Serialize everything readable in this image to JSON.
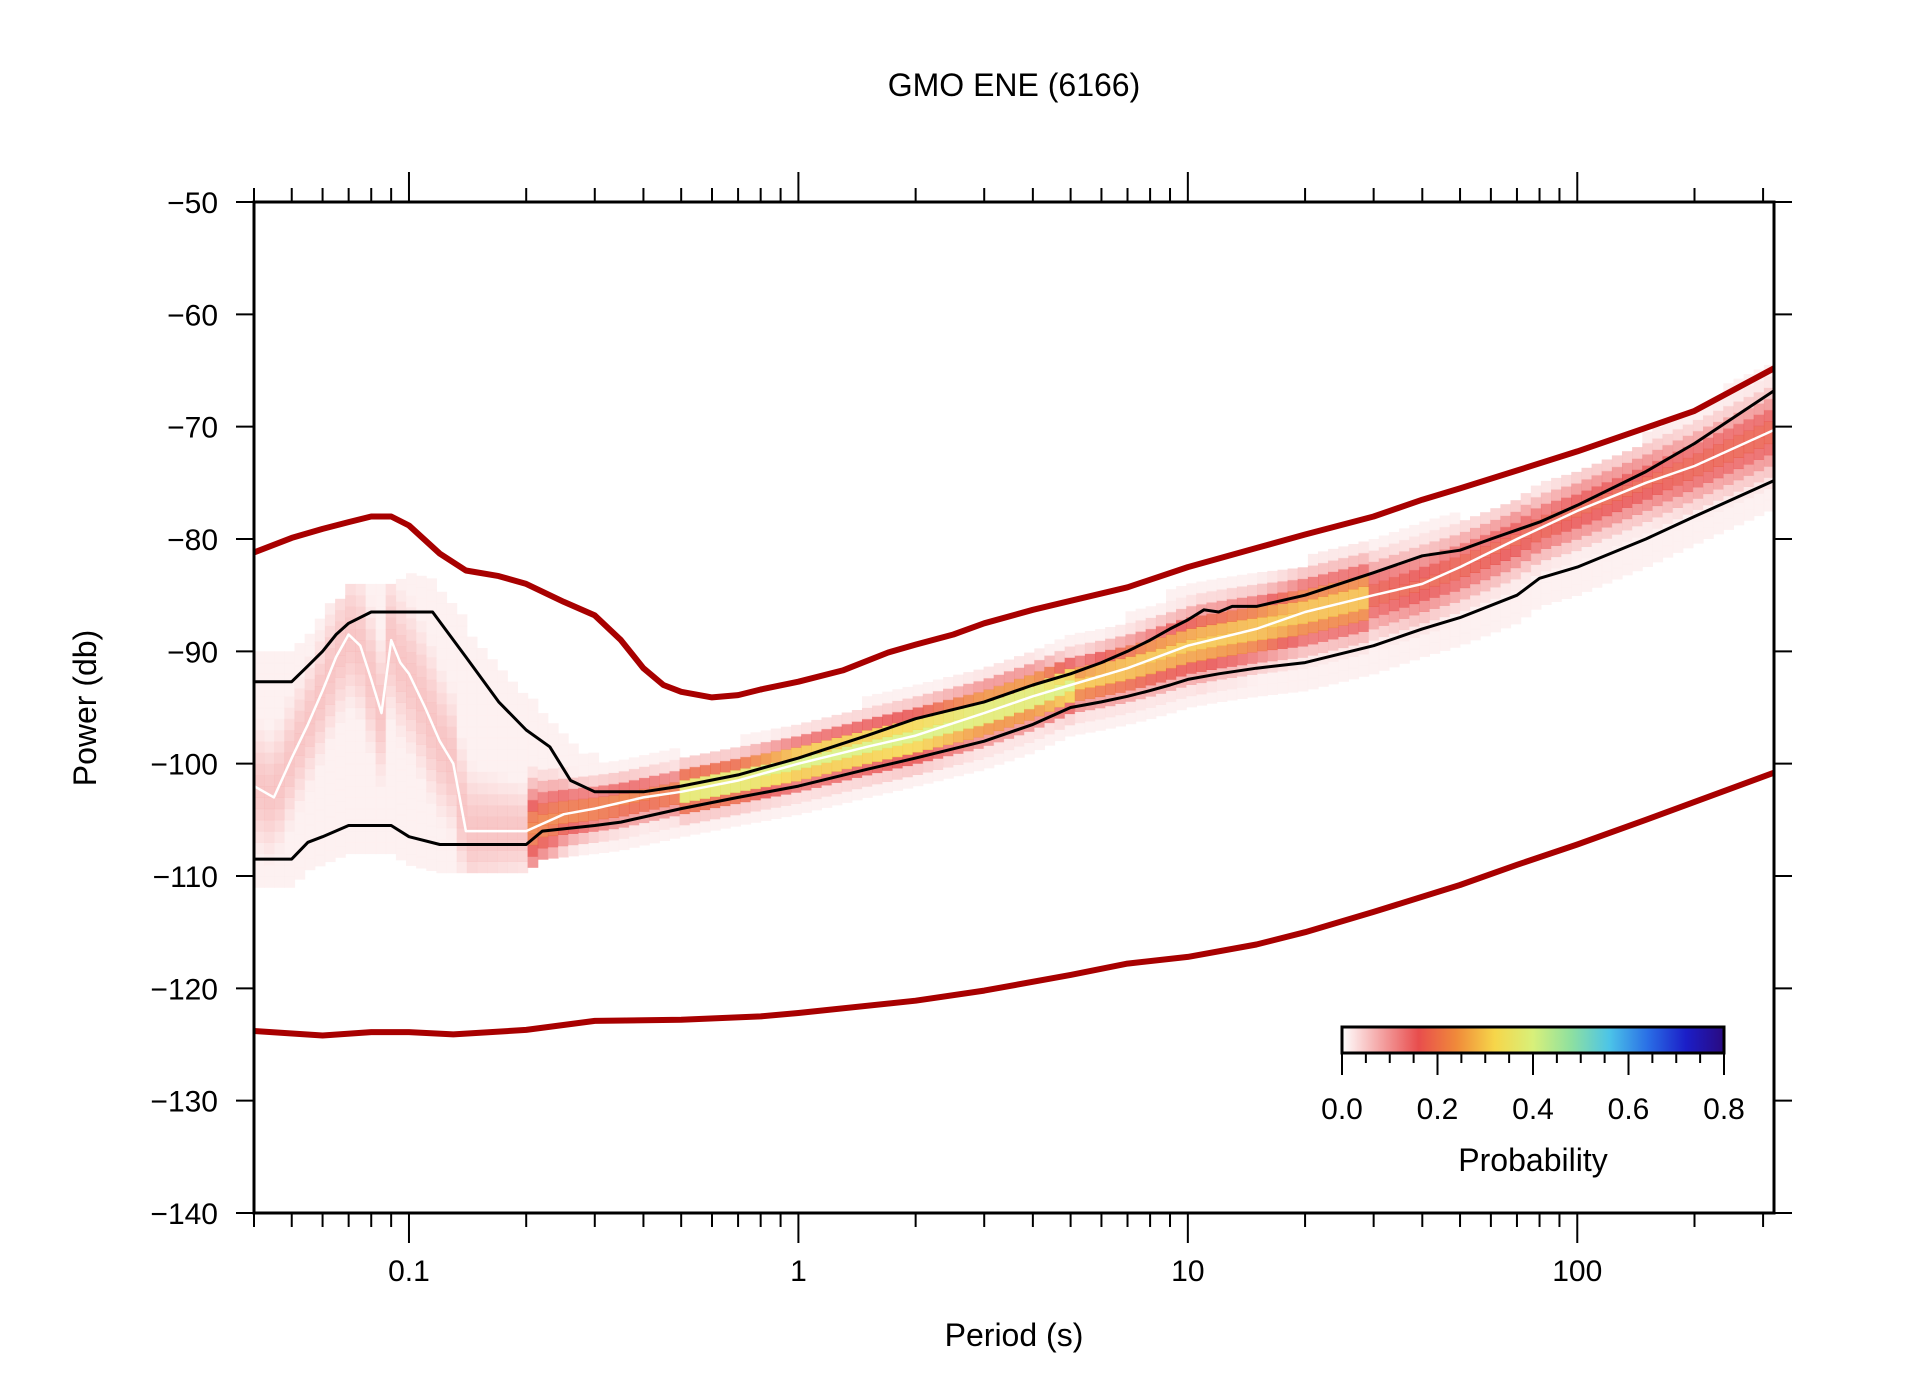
{
  "chart_data": {
    "type": "line",
    "title": "GMO ENE (6166)",
    "xlabel": "Period (s)",
    "ylabel": "Power (db)",
    "x_scale": "log",
    "xlim": [
      0.04,
      320
    ],
    "ylim": [
      -140,
      -50
    ],
    "x_ticks": [
      0.1,
      1,
      10,
      100
    ],
    "x_tick_labels": [
      "0.1",
      "1",
      "10",
      "100"
    ],
    "y_ticks": [
      -50,
      -60,
      -70,
      -80,
      -90,
      -100,
      -110,
      -120,
      -130,
      -140
    ],
    "y_tick_labels": [
      "−50",
      "−60",
      "−70",
      "−80",
      "−90",
      "−100",
      "−110",
      "−120",
      "−130",
      "−140"
    ],
    "grid": false,
    "colors": {
      "noise_model": "#a80000",
      "percentile": "#000000",
      "mode": "#ffffff"
    },
    "series": [
      {
        "key": "upper_noise_model",
        "x": [
          0.04,
          0.05,
          0.06,
          0.07,
          0.08,
          0.09,
          0.1,
          0.12,
          0.14,
          0.17,
          0.2,
          0.25,
          0.3,
          0.35,
          0.4,
          0.45,
          0.5,
          0.6,
          0.7,
          0.8,
          1.0,
          1.3,
          1.7,
          2.0,
          2.5,
          3.0,
          4.0,
          5.0,
          7.0,
          10,
          15,
          20,
          30,
          40,
          50,
          70,
          100,
          150,
          200,
          320
        ],
        "values": [
          -81.2,
          -79.9,
          -79.1,
          -78.5,
          -78.0,
          -78.0,
          -78.8,
          -81.3,
          -82.8,
          -83.3,
          -84.0,
          -85.6,
          -86.8,
          -89.0,
          -91.5,
          -93.0,
          -93.6,
          -94.1,
          -93.9,
          -93.4,
          -92.7,
          -91.7,
          -90.1,
          -89.4,
          -88.5,
          -87.5,
          -86.3,
          -85.5,
          -84.3,
          -82.5,
          -80.8,
          -79.6,
          -78.0,
          -76.5,
          -75.5,
          -73.9,
          -72.2,
          -70.1,
          -68.6,
          -64.8
        ]
      },
      {
        "key": "lower_noise_model",
        "x": [
          0.04,
          0.06,
          0.08,
          0.1,
          0.13,
          0.2,
          0.3,
          0.5,
          0.8,
          1.0,
          2.0,
          3.0,
          5.0,
          7.0,
          10,
          15,
          20,
          30,
          50,
          70,
          100,
          150,
          200,
          320
        ],
        "values": [
          -123.8,
          -124.2,
          -123.9,
          -123.9,
          -124.1,
          -123.7,
          -122.9,
          -122.8,
          -122.5,
          -122.2,
          -121.1,
          -120.2,
          -118.8,
          -117.8,
          -117.2,
          -116.1,
          -115.0,
          -113.2,
          -110.8,
          -109.0,
          -107.2,
          -105.0,
          -103.4,
          -100.8
        ]
      },
      {
        "key": "upper_percentile",
        "x": [
          0.04,
          0.05,
          0.055,
          0.06,
          0.065,
          0.07,
          0.08,
          0.09,
          0.1,
          0.115,
          0.14,
          0.17,
          0.2,
          0.23,
          0.26,
          0.3,
          0.35,
          0.4,
          0.5,
          0.7,
          1.0,
          1.5,
          2.0,
          3.0,
          4.0,
          5.0,
          6.0,
          7.0,
          8.0,
          9.0,
          10,
          11,
          12,
          13,
          15,
          20,
          30,
          40,
          50,
          60,
          80,
          100,
          150,
          200,
          320
        ],
        "values": [
          -92.7,
          -92.7,
          -91.3,
          -90.0,
          -88.5,
          -87.5,
          -86.5,
          -86.5,
          -86.5,
          -86.5,
          -90.5,
          -94.5,
          -97.0,
          -98.5,
          -101.5,
          -102.5,
          -102.5,
          -102.5,
          -102.0,
          -101.0,
          -99.5,
          -97.5,
          -96.0,
          -94.5,
          -93.0,
          -92.0,
          -91.0,
          -90.0,
          -89.0,
          -88.0,
          -87.2,
          -86.3,
          -86.5,
          -86.0,
          -86.0,
          -85.0,
          -83.0,
          -81.5,
          -81.0,
          -80.0,
          -78.5,
          -77.0,
          -74.0,
          -71.5,
          -66.8
        ]
      },
      {
        "key": "lower_percentile",
        "x": [
          0.04,
          0.05,
          0.055,
          0.06,
          0.07,
          0.09,
          0.1,
          0.12,
          0.15,
          0.2,
          0.22,
          0.3,
          0.35,
          0.5,
          0.7,
          1.0,
          1.5,
          2.0,
          3.0,
          4.0,
          5.0,
          6.0,
          7.0,
          8.0,
          9.0,
          10,
          12,
          15,
          20,
          30,
          40,
          50,
          70,
          80,
          100,
          150,
          200,
          320
        ],
        "values": [
          -108.5,
          -108.5,
          -107.0,
          -106.5,
          -105.5,
          -105.5,
          -106.5,
          -107.2,
          -107.2,
          -107.2,
          -106.0,
          -105.5,
          -105.2,
          -104.0,
          -103.0,
          -102.0,
          -100.5,
          -99.5,
          -98.0,
          -96.5,
          -95.0,
          -94.5,
          -94.0,
          -93.5,
          -93.0,
          -92.5,
          -92.0,
          -91.5,
          -91.0,
          -89.5,
          -88.0,
          -87.0,
          -85.0,
          -83.5,
          -82.5,
          -80.0,
          -78.0,
          -74.8
        ]
      },
      {
        "key": "mode",
        "x": [
          0.04,
          0.045,
          0.05,
          0.055,
          0.06,
          0.065,
          0.07,
          0.075,
          0.08,
          0.085,
          0.09,
          0.095,
          0.1,
          0.11,
          0.12,
          0.13,
          0.14,
          0.17,
          0.2,
          0.25,
          0.3,
          0.4,
          0.5,
          0.7,
          1.0,
          1.5,
          2.0,
          3.0,
          4.0,
          5.0,
          7.0,
          10,
          15,
          20,
          30,
          40,
          50,
          70,
          100,
          150,
          200,
          320
        ],
        "values": [
          -102.0,
          -103.0,
          -99.5,
          -96.5,
          -93.5,
          -90.5,
          -88.5,
          -89.5,
          -92.5,
          -95.5,
          -89.0,
          -91.0,
          -92.0,
          -95.0,
          -98.0,
          -100.0,
          -106.0,
          -106.0,
          -106.0,
          -104.5,
          -104.0,
          -103.0,
          -102.5,
          -101.5,
          -100.0,
          -98.5,
          -97.5,
          -95.5,
          -94.0,
          -93.0,
          -91.5,
          -89.5,
          -88.0,
          -86.5,
          -85.0,
          -84.0,
          -82.5,
          -80.0,
          -77.5,
          -75.0,
          -73.5,
          -70.3
        ]
      }
    ],
    "colorbar": {
      "label": "Probability",
      "ticks": [
        "0.0",
        "0.2",
        "0.4",
        "0.6",
        "0.8"
      ],
      "range": [
        0,
        0.8
      ],
      "colormap": [
        "#ffffff",
        "#f4a5a5",
        "#e84d4d",
        "#f08a3a",
        "#f6d64a",
        "#d8f07a",
        "#8ee0a0",
        "#4cc4e8",
        "#2a6fe6",
        "#1b1ec8",
        "#2a0a80"
      ],
      "placement": "lower-right"
    }
  }
}
